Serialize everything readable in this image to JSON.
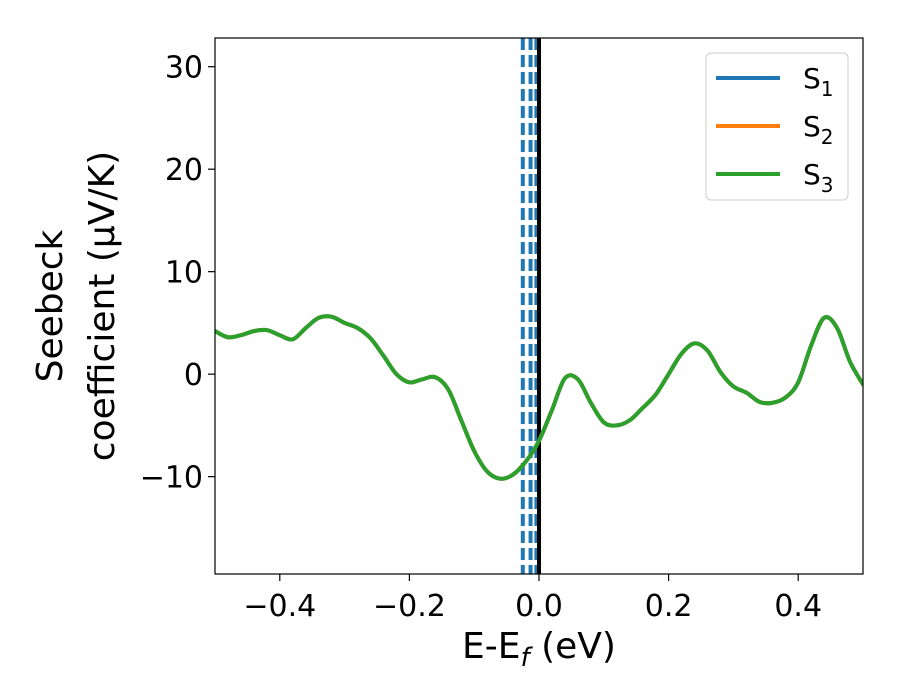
{
  "chart_data": {
    "type": "line",
    "title": "",
    "xlabel": {
      "main": "E-E",
      "sub": "f",
      "tail": " (eV)"
    },
    "ylabel": {
      "line1": "Seebeck",
      "line2": "coefficient  (μV/K)"
    },
    "xlim": [
      -0.5,
      0.5
    ],
    "ylim": [
      -19.5,
      32.8
    ],
    "xticks": [
      -0.4,
      -0.2,
      0.0,
      0.2,
      0.4
    ],
    "xtick_labels": [
      "−0.4",
      "−0.2",
      "0.0",
      "0.2",
      "0.4"
    ],
    "yticks": [
      -10,
      0,
      10,
      20,
      30
    ],
    "ytick_labels": [
      "−10",
      "0",
      "10",
      "20",
      "30"
    ],
    "grid": false,
    "legend_position": "top-right",
    "x": [
      -0.5,
      -0.48,
      -0.46,
      -0.44,
      -0.42,
      -0.4,
      -0.38,
      -0.36,
      -0.34,
      -0.32,
      -0.3,
      -0.28,
      -0.26,
      -0.24,
      -0.22,
      -0.2,
      -0.18,
      -0.16,
      -0.14,
      -0.12,
      -0.1,
      -0.08,
      -0.06,
      -0.04,
      -0.02,
      0.0,
      0.02,
      0.04,
      0.06,
      0.08,
      0.1,
      0.12,
      0.14,
      0.16,
      0.18,
      0.2,
      0.22,
      0.24,
      0.26,
      0.28,
      0.3,
      0.32,
      0.34,
      0.36,
      0.38,
      0.4,
      0.42,
      0.44,
      0.46,
      0.48,
      0.5
    ],
    "series": [
      {
        "name": {
          "base": "S",
          "sub": "1"
        },
        "color": "#1f77b4",
        "values": [
          4.2,
          3.6,
          3.8,
          4.2,
          4.3,
          3.8,
          3.4,
          4.5,
          5.5,
          5.6,
          5.0,
          4.5,
          3.5,
          1.8,
          0.0,
          -0.8,
          -0.5,
          -0.3,
          -1.5,
          -4.5,
          -7.5,
          -9.5,
          -10.2,
          -9.8,
          -8.5,
          -6.5,
          -3.5,
          -0.4,
          -0.5,
          -2.8,
          -4.7,
          -5.0,
          -4.5,
          -3.3,
          -2.0,
          0.0,
          2.0,
          3.0,
          2.3,
          0.2,
          -1.2,
          -1.8,
          -2.7,
          -2.8,
          -2.3,
          -0.8,
          2.8,
          5.5,
          4.5,
          1.2,
          -1.0
        ]
      },
      {
        "name": {
          "base": "S",
          "sub": "2"
        },
        "color": "#ff7f0e",
        "values": [
          4.2,
          3.6,
          3.8,
          4.2,
          4.3,
          3.8,
          3.4,
          4.5,
          5.5,
          5.6,
          5.0,
          4.5,
          3.5,
          1.8,
          0.0,
          -0.8,
          -0.5,
          -0.3,
          -1.5,
          -4.5,
          -7.5,
          -9.5,
          -10.2,
          -9.8,
          -8.5,
          -6.5,
          -3.5,
          -0.4,
          -0.5,
          -2.8,
          -4.7,
          -5.0,
          -4.5,
          -3.3,
          -2.0,
          0.0,
          2.0,
          3.0,
          2.3,
          0.2,
          -1.2,
          -1.8,
          -2.7,
          -2.8,
          -2.3,
          -0.8,
          2.8,
          5.5,
          4.5,
          1.2,
          -1.0
        ]
      },
      {
        "name": {
          "base": "S",
          "sub": "3"
        },
        "color": "#2ca02c",
        "values": [
          4.2,
          3.6,
          3.8,
          4.2,
          4.3,
          3.8,
          3.4,
          4.5,
          5.5,
          5.6,
          5.0,
          4.5,
          3.5,
          1.8,
          0.0,
          -0.8,
          -0.5,
          -0.3,
          -1.5,
          -4.5,
          -7.5,
          -9.5,
          -10.2,
          -9.8,
          -8.5,
          -6.5,
          -3.5,
          -0.4,
          -0.5,
          -2.8,
          -4.7,
          -5.0,
          -4.5,
          -3.3,
          -2.0,
          0.0,
          2.0,
          3.0,
          2.3,
          0.2,
          -1.2,
          -1.8,
          -2.7,
          -2.8,
          -2.3,
          -0.8,
          2.8,
          5.5,
          4.5,
          1.2,
          -1.0
        ]
      }
    ],
    "vlines": [
      {
        "x": -0.025,
        "color": "#1f77b4",
        "style": "dashed"
      },
      {
        "x": -0.013,
        "color": "#1f77b4",
        "style": "dashed"
      },
      {
        "x": -0.004,
        "color": "#1f77b4",
        "style": "dashed"
      },
      {
        "x": 0.0,
        "color": "#000000",
        "style": "solid"
      }
    ]
  }
}
